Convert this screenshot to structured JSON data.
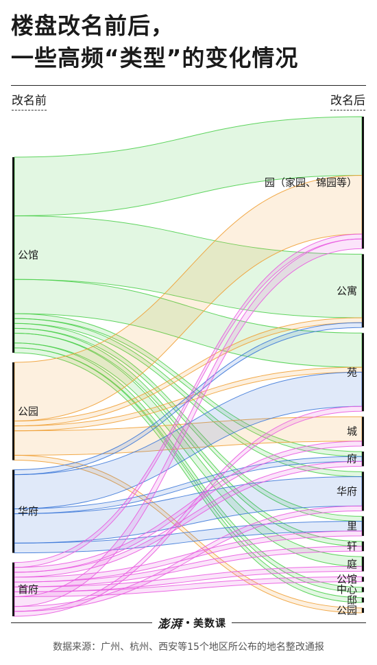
{
  "title_line1": "楼盘改名前后，",
  "title_line2": "一些高频“类型”的变化情况",
  "left_header": "改名前",
  "right_header": "改名后",
  "brand": {
    "logo": "澎湃",
    "name": "美数课"
  },
  "source": "数据来源：广州、杭州、西安等15个地区所公布的地名整改通报",
  "colors": {
    "公馆": "#4ccf4c",
    "公园": "#f0a035",
    "华府": "#3c78d8",
    "首府": "#e95ae0"
  },
  "chart_data": {
    "type": "sankey",
    "sources": [
      "公馆",
      "公园",
      "华府",
      "首府"
    ],
    "targets": [
      "园（家园、锦园等）",
      "公寓",
      "苑",
      "城",
      "府",
      "华府",
      "里",
      "轩",
      "庭",
      "公馆",
      "中心",
      "邸",
      "公园"
    ],
    "links": [
      {
        "source": "公馆",
        "target": "园（家园、锦园等）",
        "value": 12
      },
      {
        "source": "公馆",
        "target": "公寓",
        "value": 13
      },
      {
        "source": "公馆",
        "target": "苑",
        "value": 7
      },
      {
        "source": "公馆",
        "target": "府",
        "value": 1
      },
      {
        "source": "公馆",
        "target": "华府",
        "value": 1
      },
      {
        "source": "公馆",
        "target": "里",
        "value": 1
      },
      {
        "source": "公馆",
        "target": "轩",
        "value": 1
      },
      {
        "source": "公馆",
        "target": "庭",
        "value": 2
      },
      {
        "source": "公馆",
        "target": "中心",
        "value": 1
      },
      {
        "source": "公馆",
        "target": "邸",
        "value": 1
      },
      {
        "source": "公园",
        "target": "园（家园、锦园等）",
        "value": 12
      },
      {
        "source": "公园",
        "target": "公寓",
        "value": 1
      },
      {
        "source": "公园",
        "target": "苑",
        "value": 1
      },
      {
        "source": "公园",
        "target": "城",
        "value": 5
      },
      {
        "source": "公园",
        "target": "公园",
        "value": 1
      },
      {
        "source": "华府",
        "target": "公寓",
        "value": 1
      },
      {
        "source": "华府",
        "target": "苑",
        "value": 7
      },
      {
        "source": "华府",
        "target": "府",
        "value": 1
      },
      {
        "source": "华府",
        "target": "华府",
        "value": 6
      },
      {
        "source": "华府",
        "target": "里",
        "value": 2
      },
      {
        "source": "首府",
        "target": "园（家园、锦园等）",
        "value": 1
      },
      {
        "source": "首府",
        "target": "城",
        "value": 1
      },
      {
        "source": "首府",
        "target": "府",
        "value": 1
      },
      {
        "source": "首府",
        "target": "里",
        "value": 1
      },
      {
        "source": "首府",
        "target": "轩",
        "value": 1
      },
      {
        "source": "首府",
        "target": "庭",
        "value": 1
      },
      {
        "source": "首府",
        "target": "公馆",
        "value": 1
      },
      {
        "source": "首府",
        "target": "园（家园、锦园等）",
        "value": 2
      },
      {
        "source": "首府",
        "target": "华府",
        "value": 1
      },
      {
        "source": "首府",
        "target": "苑",
        "value": 1
      }
    ]
  }
}
